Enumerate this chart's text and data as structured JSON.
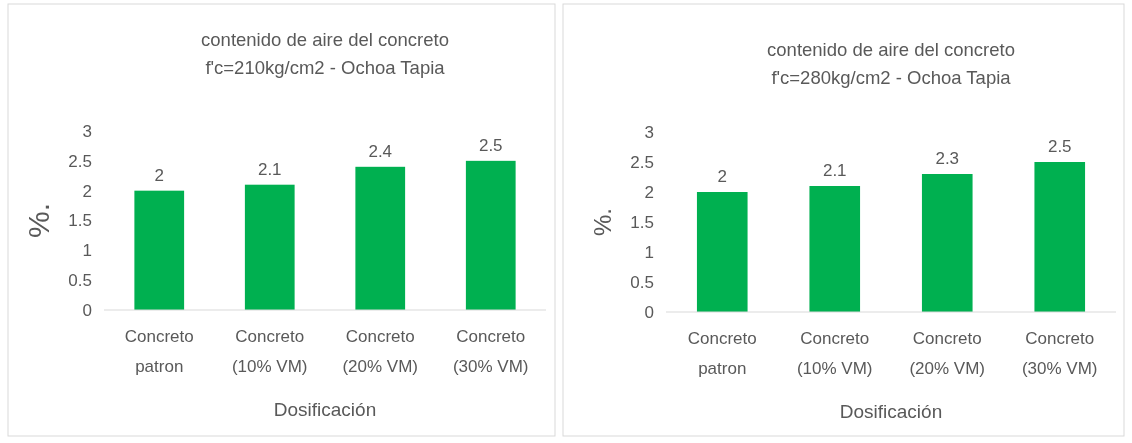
{
  "chart_data": [
    {
      "type": "bar",
      "title": "contenido de aire del concreto\nf'c=210kg/cm2 - Ochoa Tapia",
      "xlabel": "Dosificación",
      "ylabel": "%.",
      "categories": [
        "Concreto patron",
        "Concreto (10% VM)",
        "Concreto (20% VM)",
        "Concreto (30% VM)"
      ],
      "values": [
        2,
        2.1,
        2.4,
        2.5
      ],
      "color": "#00b050",
      "ylim": [
        0,
        3
      ],
      "yticks": [
        0,
        0.5,
        1,
        1.5,
        2,
        2.5,
        3
      ],
      "data_labels": true,
      "grid": false
    },
    {
      "type": "bar",
      "title": "contenido de aire del concreto\nf'c=280kg/cm2 - Ochoa Tapia",
      "xlabel": "Dosificación",
      "ylabel": "%.",
      "categories": [
        "Concreto patron",
        "Concreto (10% VM)",
        "Concreto (20% VM)",
        "Concreto (30% VM)"
      ],
      "values": [
        2,
        2.1,
        2.3,
        2.5
      ],
      "color": "#00b050",
      "ylim": [
        0,
        3
      ],
      "yticks": [
        0,
        0.5,
        1,
        1.5,
        2,
        2.5,
        3
      ],
      "data_labels": true,
      "grid": false
    }
  ]
}
